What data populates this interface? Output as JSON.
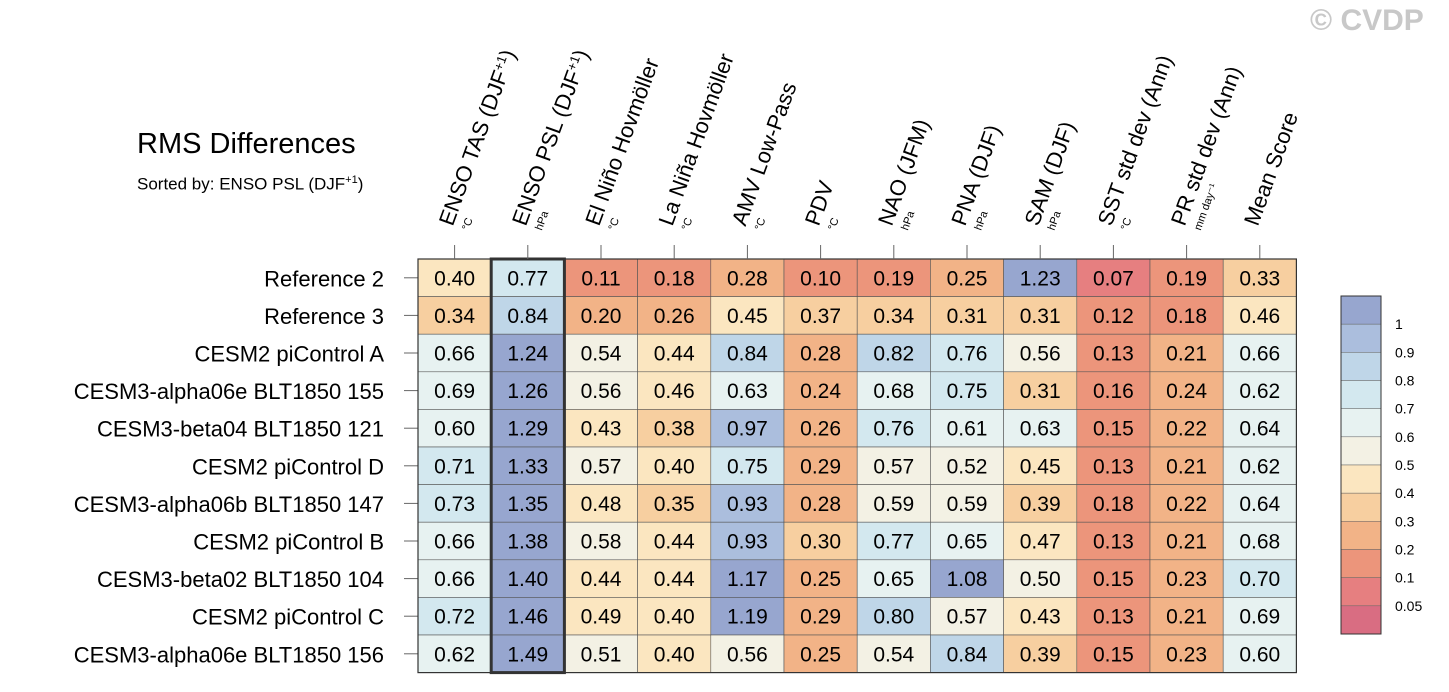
{
  "header": {
    "title": "RMS Differences",
    "subtitle_prefix": "Sorted by: ENSO PSL (DJF",
    "subtitle_sup": "+1",
    "subtitle_suffix": ")",
    "copyright": "© CVDP"
  },
  "chart_data": {
    "type": "heatmap",
    "title": "RMS Differences",
    "subtitle": "Sorted by: ENSO PSL (DJF+1)",
    "columns": [
      {
        "label": "ENSO TAS (DJF",
        "sup": "+1",
        "close": ")",
        "unit": "°C"
      },
      {
        "label": "ENSO PSL (DJF",
        "sup": "+1",
        "close": ")",
        "unit": "hPa"
      },
      {
        "label": "El Niño Hovmöller",
        "sup": "",
        "close": "",
        "unit": "°C"
      },
      {
        "label": "La Niña Hovmöller",
        "sup": "",
        "close": "",
        "unit": "°C"
      },
      {
        "label": "AMV Low-Pass",
        "sup": "",
        "close": "",
        "unit": "°C"
      },
      {
        "label": "PDV",
        "sup": "",
        "close": "",
        "unit": "°C"
      },
      {
        "label": "NAO (JFM)",
        "sup": "",
        "close": "",
        "unit": "hPa"
      },
      {
        "label": "PNA (DJF)",
        "sup": "",
        "close": "",
        "unit": "hPa"
      },
      {
        "label": "SAM (DJF)",
        "sup": "",
        "close": "",
        "unit": "hPa"
      },
      {
        "label": "SST std dev (Ann)",
        "sup": "",
        "close": "",
        "unit": "°C"
      },
      {
        "label": "PR std dev (Ann)",
        "sup": "",
        "close": "",
        "unit": "mm day⁻¹"
      },
      {
        "label": "Mean Score",
        "sup": "",
        "close": "",
        "unit": ""
      }
    ],
    "rows": [
      {
        "name": "Reference 2",
        "values": [
          0.4,
          0.77,
          0.11,
          0.18,
          0.28,
          0.1,
          0.19,
          0.25,
          1.23,
          0.07,
          0.19,
          0.33
        ]
      },
      {
        "name": "Reference 3",
        "values": [
          0.34,
          0.84,
          0.2,
          0.26,
          0.45,
          0.37,
          0.34,
          0.31,
          0.31,
          0.12,
          0.18,
          0.46
        ]
      },
      {
        "name": "CESM2 piControl A",
        "values": [
          0.66,
          1.24,
          0.54,
          0.44,
          0.84,
          0.28,
          0.82,
          0.76,
          0.56,
          0.13,
          0.21,
          0.66
        ]
      },
      {
        "name": "CESM3-alpha06e BLT1850 155",
        "values": [
          0.69,
          1.26,
          0.56,
          0.46,
          0.63,
          0.24,
          0.68,
          0.75,
          0.31,
          0.16,
          0.24,
          0.62
        ]
      },
      {
        "name": "CESM3-beta04 BLT1850 121",
        "values": [
          0.6,
          1.29,
          0.43,
          0.38,
          0.97,
          0.26,
          0.76,
          0.61,
          0.63,
          0.15,
          0.22,
          0.64
        ]
      },
      {
        "name": "CESM2 piControl D",
        "values": [
          0.71,
          1.33,
          0.57,
          0.4,
          0.75,
          0.29,
          0.57,
          0.52,
          0.45,
          0.13,
          0.21,
          0.62
        ]
      },
      {
        "name": "CESM3-alpha06b BLT1850 147",
        "values": [
          0.73,
          1.35,
          0.48,
          0.35,
          0.93,
          0.28,
          0.59,
          0.59,
          0.39,
          0.18,
          0.22,
          0.64
        ]
      },
      {
        "name": "CESM2 piControl B",
        "values": [
          0.66,
          1.38,
          0.58,
          0.44,
          0.93,
          0.3,
          0.77,
          0.65,
          0.47,
          0.13,
          0.21,
          0.68
        ]
      },
      {
        "name": "CESM3-beta02 BLT1850 104",
        "values": [
          0.66,
          1.4,
          0.44,
          0.44,
          1.17,
          0.25,
          0.65,
          1.08,
          0.5,
          0.15,
          0.23,
          0.7
        ]
      },
      {
        "name": "CESM2 piControl C",
        "values": [
          0.72,
          1.46,
          0.49,
          0.4,
          1.19,
          0.29,
          0.8,
          0.57,
          0.43,
          0.13,
          0.21,
          0.69
        ]
      },
      {
        "name": "CESM3-alpha06e BLT1850 156",
        "values": [
          0.62,
          1.49,
          0.51,
          0.4,
          0.56,
          0.25,
          0.54,
          0.84,
          0.39,
          0.15,
          0.23,
          0.6
        ]
      }
    ],
    "highlight_column": 1,
    "colorbar": {
      "levels": [
        "1",
        "0.9",
        "0.8",
        "0.7",
        "0.6",
        "0.5",
        "0.4",
        "0.3",
        "0.2",
        "0.1",
        "0.05"
      ],
      "colors": [
        "#97a6cf",
        "#abbedd",
        "#bfd6e8",
        "#d3e8ef",
        "#e7f2f1",
        "#f3f1e4",
        "#fbe6c0",
        "#f7cfa0",
        "#f2b387",
        "#ec957b",
        "#e67f80",
        "#d96d82"
      ],
      "thresholds": [
        1.0,
        0.9,
        0.8,
        0.7,
        0.6,
        0.5,
        0.4,
        0.3,
        0.2,
        0.1,
        0.05
      ]
    }
  }
}
